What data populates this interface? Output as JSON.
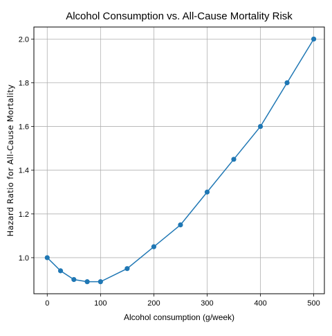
{
  "chart_data": {
    "type": "line",
    "title": "Alcohol Consumption vs. All-Cause Mortality Risk",
    "xlabel": "Alcohol consumption (g/week)",
    "ylabel": "Hazard Ratio for All-Cause Mortality",
    "xlim": [
      -25,
      520
    ],
    "ylim": [
      0.835,
      2.055
    ],
    "xticks": [
      0,
      100,
      200,
      300,
      400,
      500
    ],
    "yticks": [
      1.0,
      1.2,
      1.4,
      1.6,
      1.8,
      2.0
    ],
    "x_tick_labels": [
      "0",
      "100",
      "200",
      "300",
      "400",
      "500"
    ],
    "y_tick_labels": [
      "1.0",
      "1.2",
      "1.4",
      "1.6",
      "1.8",
      "2.0"
    ],
    "grid": true,
    "legend": "none",
    "series": [
      {
        "color": "#1f77b4",
        "marker": "circle",
        "x": [
          0,
          25,
          50,
          75,
          100,
          150,
          200,
          250,
          300,
          350,
          400,
          450,
          500
        ],
        "y": [
          1.0,
          0.94,
          0.9,
          0.89,
          0.89,
          0.95,
          1.05,
          1.15,
          1.3,
          1.45,
          1.6,
          1.8,
          2.0
        ]
      }
    ]
  }
}
